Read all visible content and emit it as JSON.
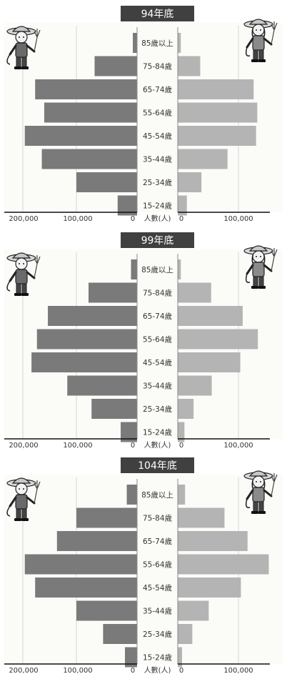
{
  "chart_data": [
    {
      "type": "bar",
      "title": "94年底",
      "categories": [
        "85歲以上",
        "75-84歲",
        "65-74歲",
        "55-64歲",
        "45-54歲",
        "35-44歲",
        "25-34歲",
        "15-24歲"
      ],
      "series": [
        {
          "values": [
            7000,
            70000,
            168000,
            153000,
            185000,
            157000,
            100000,
            32000
          ]
        },
        {
          "values": [
            5000,
            37000,
            125000,
            131000,
            129000,
            82000,
            39000,
            15000
          ]
        }
      ],
      "x_ticks_left": [
        "200,000",
        "100,000",
        "0"
      ],
      "x_ticks_right": [
        "0",
        "100,000"
      ],
      "xlabel": "人數(人)",
      "xlim": [
        0,
        200000
      ]
    },
    {
      "type": "bar",
      "title": "99年底",
      "categories": [
        "85歲以上",
        "75-84歲",
        "65-74歲",
        "55-64歲",
        "45-54歲",
        "35-44歲",
        "25-34歲",
        "15-24歲"
      ],
      "series": [
        {
          "values": [
            10000,
            80000,
            147000,
            165000,
            174000,
            115000,
            75000,
            27000
          ]
        },
        {
          "values": [
            5000,
            55000,
            107000,
            132000,
            103000,
            56000,
            26000,
            11000
          ]
        }
      ],
      "x_ticks_left": [
        "200,000",
        "100,000",
        "0"
      ],
      "x_ticks_right": [
        "0",
        "100,000"
      ],
      "xlabel": "人數(人)",
      "xlim": [
        0,
        200000
      ]
    },
    {
      "type": "bar",
      "title": "104年底",
      "categories": [
        "85歲以上",
        "75-84歲",
        "65-74歲",
        "55-64歲",
        "45-54歲",
        "35-44歲",
        "25-34歲",
        "15-24歲"
      ],
      "series": [
        {
          "values": [
            17000,
            100000,
            132000,
            185000,
            168000,
            100000,
            56000,
            20000
          ]
        },
        {
          "values": [
            12000,
            77000,
            115000,
            150000,
            104000,
            51000,
            24000,
            7000
          ]
        }
      ],
      "x_ticks_left": [
        "200,000",
        "100,000",
        "0"
      ],
      "x_ticks_right": [
        "0",
        "100,000"
      ],
      "xlabel": "人數(人)",
      "xlim": [
        0,
        200000
      ]
    }
  ],
  "colors": {
    "left_bar": "#7a7a7a",
    "right_bar": "#b4b4b4",
    "title_bg": "#404040",
    "title_text": "#ffffff"
  },
  "icons": [
    "farmer-man-icon",
    "farmer-woman-icon"
  ]
}
